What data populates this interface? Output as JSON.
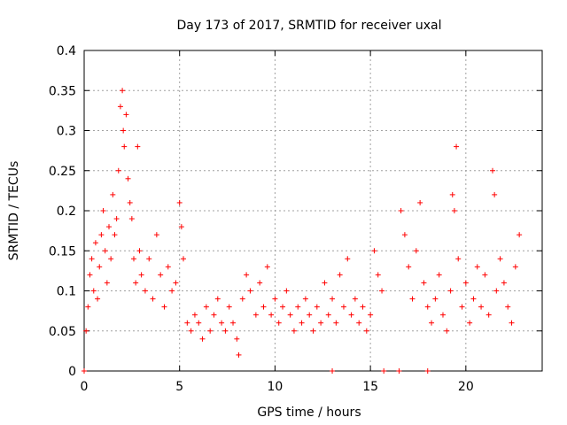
{
  "chart_data": {
    "type": "scatter",
    "title": "Day 173 of 2017, SRMTID for receiver uxal",
    "xlabel": "GPS time / hours",
    "ylabel": "SRMTID / TECUs",
    "xlim": [
      0,
      24
    ],
    "ylim": [
      0,
      0.4
    ],
    "xticks": [
      0,
      5,
      10,
      15,
      20
    ],
    "xtick_labels": [
      "0",
      "5",
      "10",
      "15",
      "20"
    ],
    "yticks": [
      0,
      0.05,
      0.1,
      0.15,
      0.2,
      0.25,
      0.3,
      0.35,
      0.4
    ],
    "ytick_labels": [
      "0",
      "0.05",
      "0.1",
      "0.15",
      "0.2",
      "0.25",
      "0.3",
      "0.35",
      "0.4"
    ],
    "grid": true,
    "marker": "plus",
    "color": "#ff0000",
    "series": [
      {
        "name": "SRMTID",
        "points": [
          [
            0.1,
            0.05
          ],
          [
            0.2,
            0.08
          ],
          [
            0.3,
            0.12
          ],
          [
            0.4,
            0.14
          ],
          [
            0.5,
            0.1
          ],
          [
            0.6,
            0.16
          ],
          [
            0.7,
            0.09
          ],
          [
            0.8,
            0.13
          ],
          [
            0.9,
            0.17
          ],
          [
            1.0,
            0.2
          ],
          [
            1.1,
            0.15
          ],
          [
            1.2,
            0.11
          ],
          [
            1.3,
            0.18
          ],
          [
            1.4,
            0.14
          ],
          [
            1.5,
            0.22
          ],
          [
            1.6,
            0.17
          ],
          [
            1.7,
            0.19
          ],
          [
            1.8,
            0.25
          ],
          [
            1.9,
            0.33
          ],
          [
            2.0,
            0.35
          ],
          [
            2.05,
            0.3
          ],
          [
            2.1,
            0.28
          ],
          [
            2.2,
            0.32
          ],
          [
            2.3,
            0.24
          ],
          [
            2.4,
            0.21
          ],
          [
            2.5,
            0.19
          ],
          [
            2.6,
            0.14
          ],
          [
            2.7,
            0.11
          ],
          [
            2.8,
            0.28
          ],
          [
            2.9,
            0.15
          ],
          [
            3.0,
            0.12
          ],
          [
            3.2,
            0.1
          ],
          [
            3.4,
            0.14
          ],
          [
            3.6,
            0.09
          ],
          [
            3.8,
            0.17
          ],
          [
            4.0,
            0.12
          ],
          [
            4.2,
            0.08
          ],
          [
            4.4,
            0.13
          ],
          [
            4.6,
            0.1
          ],
          [
            4.8,
            0.11
          ],
          [
            5.0,
            0.21
          ],
          [
            5.1,
            0.18
          ],
          [
            5.2,
            0.14
          ],
          [
            5.4,
            0.06
          ],
          [
            5.6,
            0.05
          ],
          [
            5.8,
            0.07
          ],
          [
            6.0,
            0.06
          ],
          [
            6.2,
            0.04
          ],
          [
            6.4,
            0.08
          ],
          [
            6.6,
            0.05
          ],
          [
            6.8,
            0.07
          ],
          [
            7.0,
            0.09
          ],
          [
            7.2,
            0.06
          ],
          [
            7.4,
            0.05
          ],
          [
            7.6,
            0.08
          ],
          [
            7.8,
            0.06
          ],
          [
            8.0,
            0.04
          ],
          [
            8.1,
            0.02
          ],
          [
            8.3,
            0.09
          ],
          [
            8.5,
            0.12
          ],
          [
            8.7,
            0.1
          ],
          [
            9.0,
            0.07
          ],
          [
            9.2,
            0.11
          ],
          [
            9.4,
            0.08
          ],
          [
            9.6,
            0.13
          ],
          [
            9.8,
            0.07
          ],
          [
            10.0,
            0.09
          ],
          [
            10.2,
            0.06
          ],
          [
            10.4,
            0.08
          ],
          [
            10.6,
            0.1
          ],
          [
            10.8,
            0.07
          ],
          [
            11.0,
            0.05
          ],
          [
            11.2,
            0.08
          ],
          [
            11.4,
            0.06
          ],
          [
            11.6,
            0.09
          ],
          [
            11.8,
            0.07
          ],
          [
            12.0,
            0.05
          ],
          [
            12.2,
            0.08
          ],
          [
            12.4,
            0.06
          ],
          [
            12.6,
            0.11
          ],
          [
            12.8,
            0.07
          ],
          [
            13.0,
            0.09
          ],
          [
            13.2,
            0.06
          ],
          [
            13.4,
            0.12
          ],
          [
            13.6,
            0.08
          ],
          [
            13.8,
            0.14
          ],
          [
            14.0,
            0.07
          ],
          [
            14.2,
            0.09
          ],
          [
            14.4,
            0.06
          ],
          [
            14.6,
            0.08
          ],
          [
            14.8,
            0.05
          ],
          [
            15.0,
            0.07
          ],
          [
            15.2,
            0.15
          ],
          [
            15.4,
            0.12
          ],
          [
            15.6,
            0.1
          ],
          [
            16.6,
            0.2
          ],
          [
            16.8,
            0.17
          ],
          [
            17.0,
            0.13
          ],
          [
            17.2,
            0.09
          ],
          [
            17.4,
            0.15
          ],
          [
            17.6,
            0.21
          ],
          [
            17.8,
            0.11
          ],
          [
            18.0,
            0.08
          ],
          [
            18.2,
            0.06
          ],
          [
            18.4,
            0.09
          ],
          [
            18.6,
            0.12
          ],
          [
            18.8,
            0.07
          ],
          [
            19.0,
            0.05
          ],
          [
            19.2,
            0.1
          ],
          [
            19.3,
            0.22
          ],
          [
            19.4,
            0.2
          ],
          [
            19.5,
            0.28
          ],
          [
            19.6,
            0.14
          ],
          [
            19.8,
            0.08
          ],
          [
            20.0,
            0.11
          ],
          [
            20.2,
            0.06
          ],
          [
            20.4,
            0.09
          ],
          [
            20.6,
            0.13
          ],
          [
            20.8,
            0.08
          ],
          [
            21.0,
            0.12
          ],
          [
            21.2,
            0.07
          ],
          [
            21.4,
            0.25
          ],
          [
            21.5,
            0.22
          ],
          [
            21.6,
            0.1
          ],
          [
            21.8,
            0.14
          ],
          [
            22.0,
            0.11
          ],
          [
            22.2,
            0.08
          ],
          [
            22.4,
            0.06
          ],
          [
            22.6,
            0.13
          ],
          [
            22.8,
            0.17
          ],
          [
            0.0,
            0.0
          ],
          [
            13.0,
            0.0
          ],
          [
            15.7,
            0.0
          ],
          [
            16.5,
            0.0
          ],
          [
            18.0,
            0.0
          ]
        ]
      }
    ]
  }
}
